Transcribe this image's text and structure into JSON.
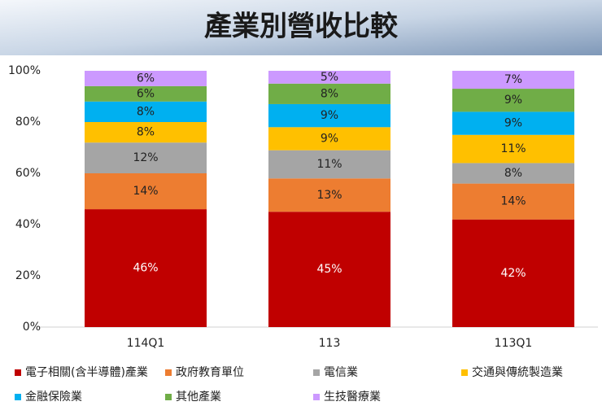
{
  "chart_data": {
    "type": "stacked_bar",
    "title": "產業別營收比較",
    "categories": [
      "114Q1",
      "113",
      "113Q1"
    ],
    "series": [
      {
        "name": "電子相關(含半導體)產業",
        "color": "#c00000",
        "values": [
          46,
          45,
          42
        ],
        "value_labels": [
          "46%",
          "45%",
          "42%"
        ]
      },
      {
        "name": "政府教育單位",
        "color": "#ed7d31",
        "values": [
          14,
          13,
          14
        ],
        "value_labels": [
          "14%",
          "13%",
          "14%"
        ]
      },
      {
        "name": "電信業",
        "color": "#a5a5a5",
        "values": [
          12,
          11,
          8
        ],
        "value_labels": [
          "12%",
          "11%",
          "8%"
        ]
      },
      {
        "name": "交通與傳統製造業",
        "color": "#ffc000",
        "values": [
          8,
          9,
          11
        ],
        "value_labels": [
          "8%",
          "9%",
          "11%"
        ]
      },
      {
        "name": "金融保險業",
        "color": "#00b0f0",
        "values": [
          8,
          9,
          9
        ],
        "value_labels": [
          "8%",
          "9%",
          "9%"
        ]
      },
      {
        "name": "其他產業",
        "color": "#70ad47",
        "values": [
          6,
          8,
          9
        ],
        "value_labels": [
          "6%",
          "8%",
          "9%"
        ]
      },
      {
        "name": "生技醫療業",
        "color": "#cc99ff",
        "values": [
          6,
          5,
          7
        ],
        "value_labels": [
          "6%",
          "5%",
          "7%"
        ]
      }
    ],
    "ylim": [
      0,
      100
    ],
    "yticks": [
      {
        "value": 0,
        "label": "0%"
      },
      {
        "value": 20,
        "label": "20%"
      },
      {
        "value": 40,
        "label": "40%"
      },
      {
        "value": 60,
        "label": "60%"
      },
      {
        "value": 80,
        "label": "80%"
      },
      {
        "value": 100,
        "label": "100%"
      }
    ],
    "grid": false,
    "legend": "bottom"
  }
}
